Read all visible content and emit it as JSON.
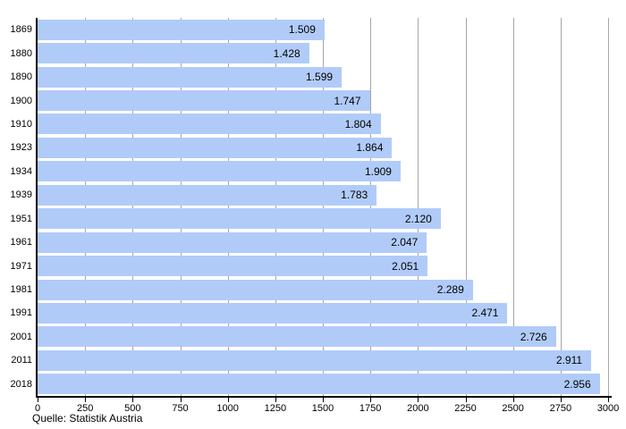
{
  "chart_data": {
    "type": "bar",
    "orientation": "horizontal",
    "title": "",
    "categories": [
      "1869",
      "1880",
      "1890",
      "1900",
      "1910",
      "1923",
      "1934",
      "1939",
      "1951",
      "1961",
      "1971",
      "1981",
      "1991",
      "2001",
      "2011",
      "2018"
    ],
    "values": [
      1509,
      1428,
      1599,
      1747,
      1804,
      1864,
      1909,
      1783,
      2120,
      2047,
      2051,
      2289,
      2471,
      2726,
      2911,
      2956
    ],
    "value_labels": [
      "1.509",
      "1.428",
      "1.599",
      "1.747",
      "1.804",
      "1.864",
      "1.909",
      "1.783",
      "2.120",
      "2.047",
      "2.051",
      "2.289",
      "2.471",
      "2.726",
      "2.911",
      "2.956"
    ],
    "xlim": [
      0,
      3000
    ],
    "x_ticks": [
      0,
      250,
      500,
      750,
      1000,
      1250,
      1500,
      1750,
      2000,
      2250,
      2500,
      2750,
      3000
    ],
    "grid": true,
    "legend": false,
    "source": "Quelle: Statistik Austria",
    "bar_color": "#b1cbf9",
    "grid_color": "#a6a6a6",
    "axis_color": "#000000",
    "text_color": "#000000"
  }
}
